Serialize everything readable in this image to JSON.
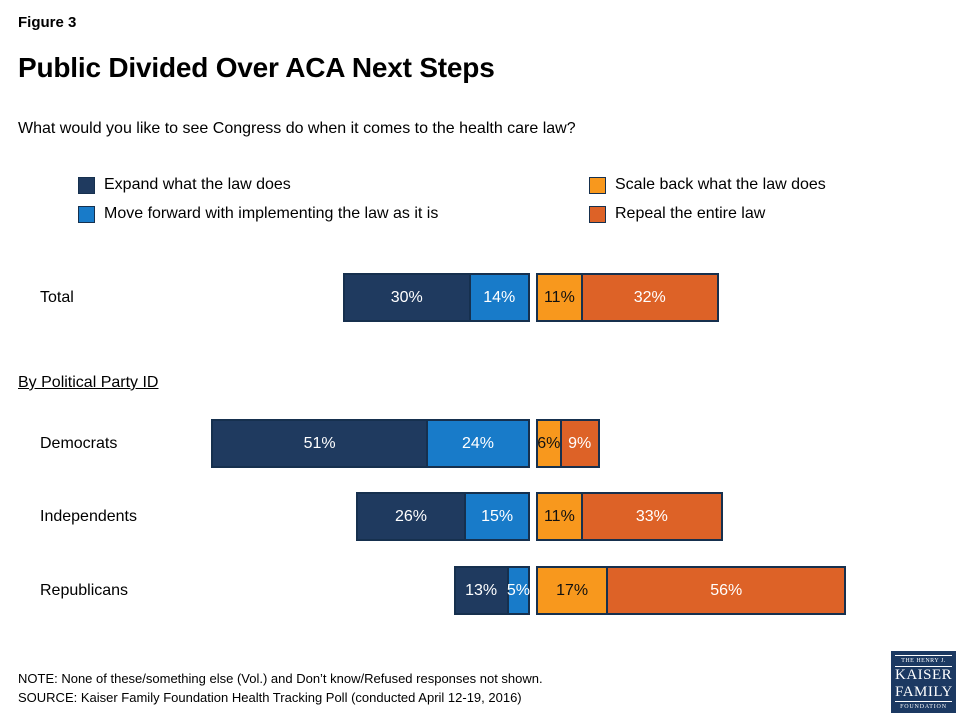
{
  "figure_label": "Figure 3",
  "title": "Public Divided Over ACA Next Steps",
  "question": "What would you like to see Congress do when it comes to the health care law?",
  "section_heading": "By Political Party ID",
  "legend": [
    {
      "label": "Expand what the law does",
      "color": "#1F3A5F"
    },
    {
      "label": "Move forward with implementing the law as it is",
      "color": "#187BC9"
    },
    {
      "label": "Scale back what the law does",
      "color": "#F8981D"
    },
    {
      "label": "Repeal the entire law",
      "color": "#DD6227"
    }
  ],
  "chart_data": {
    "type": "bar",
    "orientation": "horizontal-diverging-stacked",
    "unit": "percent",
    "title": "Public Divided Over ACA Next Steps",
    "series_names": [
      "Expand what the law does",
      "Move forward with implementing the law as it is",
      "Scale back what the law does",
      "Repeal the entire law"
    ],
    "series_colors": [
      "#1F3A5F",
      "#187BC9",
      "#F8981D",
      "#DD6227"
    ],
    "categories": [
      "Total",
      "Democrats",
      "Independents",
      "Republicans"
    ],
    "rows": [
      {
        "label": "Total",
        "values": [
          30,
          14,
          11,
          32
        ]
      },
      {
        "label": "Democrats",
        "values": [
          51,
          24,
          6,
          9
        ]
      },
      {
        "label": "Independents",
        "values": [
          26,
          15,
          11,
          33
        ]
      },
      {
        "label": "Republicans",
        "values": [
          13,
          5,
          17,
          56
        ]
      }
    ],
    "value_label_format": "{value}%",
    "legend_position": "top",
    "grid": false
  },
  "note": "NOTE: None of these/something else (Vol.) and Don’t know/Refused responses not shown.",
  "source": "SOURCE: Kaiser Family Foundation Health Tracking Poll (conducted April 12-19, 2016)",
  "logo": {
    "line1": "THE HENRY J.",
    "line2": "KAISER",
    "line3": "FAMILY",
    "line4": "FOUNDATION"
  }
}
